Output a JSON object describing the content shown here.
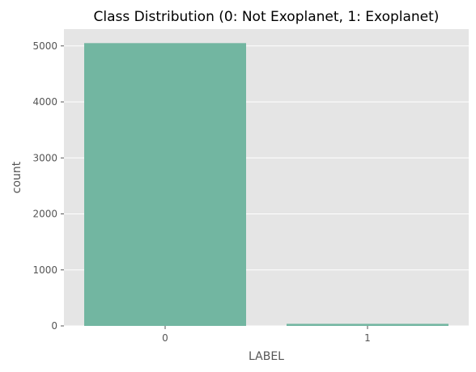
{
  "chart_data": {
    "type": "bar",
    "title": "Class Distribution (0: Not Exoplanet, 1: Exoplanet)",
    "xlabel": "LABEL",
    "ylabel": "count",
    "categories": [
      "0",
      "1"
    ],
    "values": [
      5050,
      37
    ],
    "ylim": [
      0,
      5300
    ],
    "yticks": [
      0,
      1000,
      2000,
      3000,
      4000,
      5000
    ],
    "grid": true,
    "colors": {
      "bar": "#72b6a1",
      "plot_background": "#e5e5e5",
      "grid": "#ffffff"
    }
  }
}
